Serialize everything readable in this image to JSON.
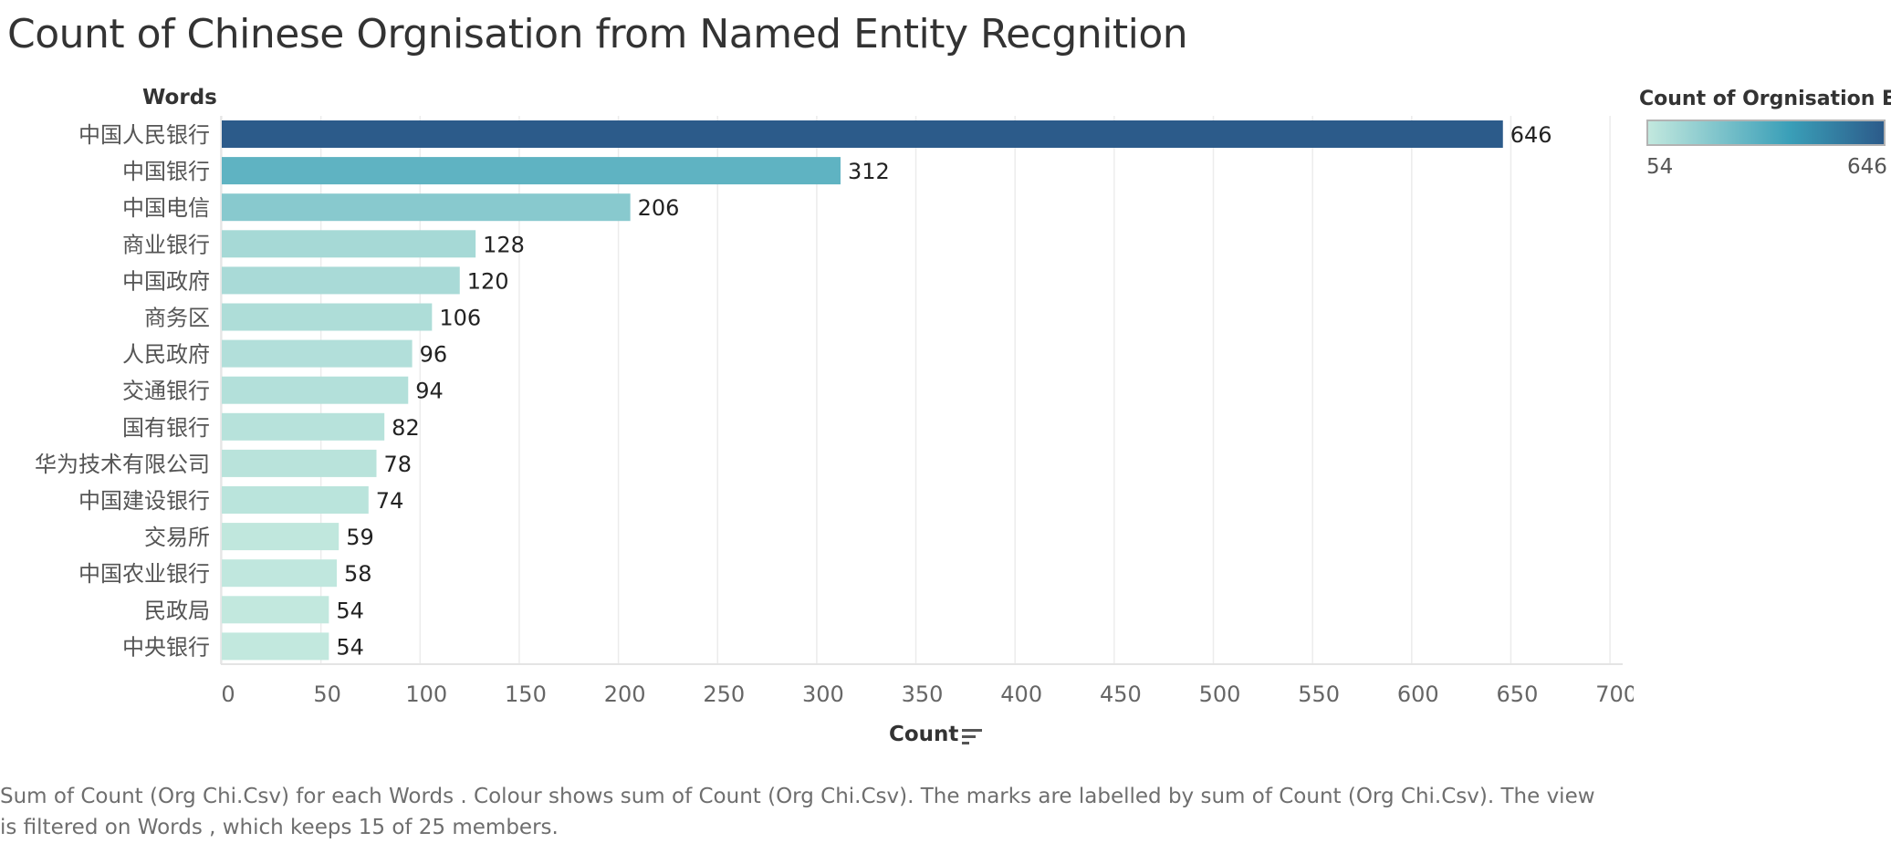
{
  "title": "Count of Chinese Orgnisation from Named Entity Recgnition",
  "footer": "Sum of Count (Org Chi.Csv) for each Words .  Colour shows sum of Count (Org Chi.Csv).  The marks are labelled by sum of Count (Org Chi.Csv). The view is filtered on Words , which keeps 15 of 25 members.",
  "legend": {
    "title": "Count of Orgnisation E..",
    "min_label": "54",
    "max_label": "646",
    "color_low": "#c2e8de",
    "color_mid": "#3a9fb8",
    "color_high": "#2c5b8a"
  },
  "chart_data": {
    "type": "bar",
    "orientation": "horizontal",
    "title": "Count of Chinese Orgnisation from Named Entity Recgnition",
    "ylabel": "Words",
    "xlabel": "Count",
    "xlim": [
      0,
      700
    ],
    "xticks": [
      0,
      50,
      100,
      150,
      200,
      250,
      300,
      350,
      400,
      450,
      500,
      550,
      600,
      650,
      700
    ],
    "grid": true,
    "legend_placement": "top-right",
    "categories": [
      "中国人民银行",
      "中国银行",
      "中国电信",
      "商业银行",
      "中国政府",
      "商务区",
      "人民政府",
      "交通银行",
      "国有银行",
      "华为技术有限公司",
      "中国建设银行",
      "交易所",
      "中国农业银行",
      "民政局",
      "中央银行"
    ],
    "values": [
      646,
      312,
      206,
      128,
      120,
      106,
      96,
      94,
      82,
      78,
      74,
      59,
      58,
      54,
      54
    ]
  }
}
